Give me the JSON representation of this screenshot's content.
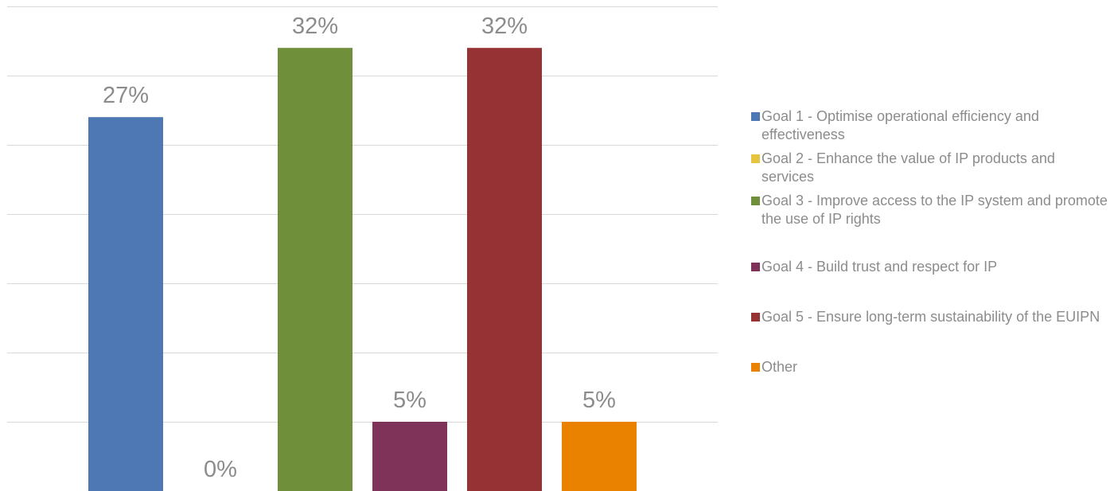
{
  "chart_data": {
    "type": "bar",
    "categories": [
      "Goal 1 - Optimise operational efficiency and effectiveness",
      "Goal 2 - Enhance the value of IP products and services",
      "Goal 3 - Improve access to the IP system and promote the use of IP rights",
      "Goal 4 - Build trust and respect for IP",
      "Goal 5 - Ensure long-term sustainability of the EUIPN",
      "Other"
    ],
    "values": [
      27,
      0,
      32,
      5,
      32,
      5
    ],
    "data_labels": [
      "27%",
      "0%",
      "32%",
      "5%",
      "32%",
      "5%"
    ],
    "colors": [
      "#4e78b3",
      "#e5c440",
      "#6f8f3b",
      "#803359",
      "#973234",
      "#ea8200"
    ],
    "ylim": [
      0,
      35
    ],
    "grid": true,
    "legend_position": "right"
  }
}
